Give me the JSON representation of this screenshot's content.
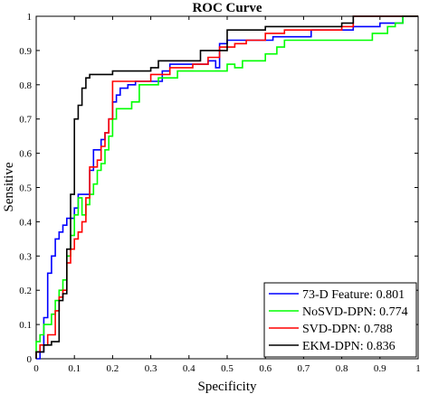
{
  "chart_data": {
    "type": "line",
    "title": "ROC Curve",
    "xlabel": "Specificity",
    "ylabel": "Sensitive",
    "xlim": [
      0,
      1
    ],
    "ylim": [
      0,
      1
    ],
    "xticks": [
      "0",
      "0.1",
      "0.2",
      "0.3",
      "0.4",
      "0.5",
      "0.6",
      "0.7",
      "0.8",
      "0.9",
      "1"
    ],
    "yticks": [
      "0",
      "0.1",
      "0.2",
      "0.3",
      "0.4",
      "0.5",
      "0.6",
      "0.7",
      "0.8",
      "0.9",
      "1"
    ],
    "grid": false,
    "legend_position": "bottom-right",
    "series": [
      {
        "name": "73-D Feature: 0.801",
        "color": "#0000ff",
        "points": [
          [
            0,
            0
          ],
          [
            0.01,
            0
          ],
          [
            0.01,
            0.02
          ],
          [
            0.02,
            0.02
          ],
          [
            0.02,
            0.12
          ],
          [
            0.03,
            0.12
          ],
          [
            0.03,
            0.25
          ],
          [
            0.04,
            0.25
          ],
          [
            0.04,
            0.3
          ],
          [
            0.05,
            0.3
          ],
          [
            0.05,
            0.35
          ],
          [
            0.06,
            0.35
          ],
          [
            0.06,
            0.37
          ],
          [
            0.07,
            0.37
          ],
          [
            0.07,
            0.39
          ],
          [
            0.08,
            0.39
          ],
          [
            0.08,
            0.41
          ],
          [
            0.1,
            0.41
          ],
          [
            0.1,
            0.44
          ],
          [
            0.11,
            0.44
          ],
          [
            0.11,
            0.48
          ],
          [
            0.14,
            0.48
          ],
          [
            0.14,
            0.55
          ],
          [
            0.15,
            0.55
          ],
          [
            0.15,
            0.61
          ],
          [
            0.17,
            0.61
          ],
          [
            0.17,
            0.64
          ],
          [
            0.18,
            0.64
          ],
          [
            0.18,
            0.66
          ],
          [
            0.19,
            0.66
          ],
          [
            0.19,
            0.7
          ],
          [
            0.2,
            0.7
          ],
          [
            0.2,
            0.75
          ],
          [
            0.21,
            0.75
          ],
          [
            0.21,
            0.77
          ],
          [
            0.22,
            0.77
          ],
          [
            0.22,
            0.79
          ],
          [
            0.24,
            0.79
          ],
          [
            0.24,
            0.8
          ],
          [
            0.26,
            0.8
          ],
          [
            0.26,
            0.81
          ],
          [
            0.33,
            0.81
          ],
          [
            0.33,
            0.84
          ],
          [
            0.35,
            0.84
          ],
          [
            0.35,
            0.86
          ],
          [
            0.45,
            0.86
          ],
          [
            0.45,
            0.87
          ],
          [
            0.47,
            0.87
          ],
          [
            0.47,
            0.85
          ],
          [
            0.48,
            0.85
          ],
          [
            0.48,
            0.92
          ],
          [
            0.5,
            0.92
          ],
          [
            0.5,
            0.93
          ],
          [
            0.62,
            0.93
          ],
          [
            0.62,
            0.94
          ],
          [
            0.72,
            0.94
          ],
          [
            0.72,
            0.96
          ],
          [
            0.83,
            0.96
          ],
          [
            0.83,
            0.97
          ],
          [
            0.9,
            0.97
          ],
          [
            0.9,
            0.98
          ],
          [
            0.96,
            0.98
          ],
          [
            0.96,
            1
          ],
          [
            1,
            1
          ]
        ]
      },
      {
        "name": "NoSVD-DPN: 0.774",
        "color": "#00ff00",
        "points": [
          [
            0,
            0
          ],
          [
            0,
            0.05
          ],
          [
            0.01,
            0.05
          ],
          [
            0.01,
            0.07
          ],
          [
            0.02,
            0.07
          ],
          [
            0.02,
            0.1
          ],
          [
            0.04,
            0.1
          ],
          [
            0.04,
            0.13
          ],
          [
            0.05,
            0.13
          ],
          [
            0.05,
            0.17
          ],
          [
            0.06,
            0.17
          ],
          [
            0.06,
            0.2
          ],
          [
            0.07,
            0.2
          ],
          [
            0.07,
            0.23
          ],
          [
            0.08,
            0.23
          ],
          [
            0.08,
            0.3
          ],
          [
            0.09,
            0.3
          ],
          [
            0.09,
            0.36
          ],
          [
            0.1,
            0.36
          ],
          [
            0.1,
            0.42
          ],
          [
            0.11,
            0.42
          ],
          [
            0.11,
            0.47
          ],
          [
            0.12,
            0.47
          ],
          [
            0.12,
            0.42
          ],
          [
            0.13,
            0.42
          ],
          [
            0.13,
            0.45
          ],
          [
            0.14,
            0.45
          ],
          [
            0.14,
            0.48
          ],
          [
            0.15,
            0.48
          ],
          [
            0.15,
            0.51
          ],
          [
            0.16,
            0.51
          ],
          [
            0.16,
            0.55
          ],
          [
            0.17,
            0.55
          ],
          [
            0.17,
            0.57
          ],
          [
            0.18,
            0.57
          ],
          [
            0.18,
            0.61
          ],
          [
            0.19,
            0.61
          ],
          [
            0.19,
            0.65
          ],
          [
            0.2,
            0.65
          ],
          [
            0.2,
            0.7
          ],
          [
            0.21,
            0.7
          ],
          [
            0.21,
            0.73
          ],
          [
            0.25,
            0.73
          ],
          [
            0.25,
            0.75
          ],
          [
            0.27,
            0.75
          ],
          [
            0.27,
            0.8
          ],
          [
            0.32,
            0.8
          ],
          [
            0.32,
            0.82
          ],
          [
            0.37,
            0.82
          ],
          [
            0.37,
            0.84
          ],
          [
            0.5,
            0.84
          ],
          [
            0.5,
            0.86
          ],
          [
            0.52,
            0.86
          ],
          [
            0.52,
            0.85
          ],
          [
            0.54,
            0.85
          ],
          [
            0.54,
            0.87
          ],
          [
            0.6,
            0.87
          ],
          [
            0.6,
            0.89
          ],
          [
            0.63,
            0.89
          ],
          [
            0.63,
            0.91
          ],
          [
            0.65,
            0.91
          ],
          [
            0.65,
            0.93
          ],
          [
            0.88,
            0.93
          ],
          [
            0.88,
            0.95
          ],
          [
            0.92,
            0.95
          ],
          [
            0.92,
            0.97
          ],
          [
            0.94,
            0.97
          ],
          [
            0.94,
            0.98
          ],
          [
            0.96,
            0.98
          ],
          [
            0.96,
            1
          ],
          [
            1,
            1
          ]
        ]
      },
      {
        "name": "SVD-DPN: 0.788",
        "color": "#ff0000",
        "points": [
          [
            0,
            0
          ],
          [
            0,
            0.02
          ],
          [
            0.01,
            0.02
          ],
          [
            0.01,
            0.04
          ],
          [
            0.03,
            0.04
          ],
          [
            0.03,
            0.07
          ],
          [
            0.05,
            0.07
          ],
          [
            0.05,
            0.14
          ],
          [
            0.06,
            0.14
          ],
          [
            0.06,
            0.18
          ],
          [
            0.07,
            0.18
          ],
          [
            0.07,
            0.2
          ],
          [
            0.08,
            0.2
          ],
          [
            0.08,
            0.28
          ],
          [
            0.09,
            0.28
          ],
          [
            0.09,
            0.32
          ],
          [
            0.1,
            0.32
          ],
          [
            0.1,
            0.35
          ],
          [
            0.11,
            0.35
          ],
          [
            0.11,
            0.37
          ],
          [
            0.12,
            0.37
          ],
          [
            0.12,
            0.4
          ],
          [
            0.13,
            0.4
          ],
          [
            0.13,
            0.47
          ],
          [
            0.14,
            0.47
          ],
          [
            0.14,
            0.56
          ],
          [
            0.16,
            0.56
          ],
          [
            0.16,
            0.58
          ],
          [
            0.17,
            0.58
          ],
          [
            0.17,
            0.62
          ],
          [
            0.18,
            0.62
          ],
          [
            0.18,
            0.66
          ],
          [
            0.19,
            0.66
          ],
          [
            0.19,
            0.7
          ],
          [
            0.2,
            0.7
          ],
          [
            0.2,
            0.81
          ],
          [
            0.3,
            0.81
          ],
          [
            0.3,
            0.83
          ],
          [
            0.35,
            0.83
          ],
          [
            0.35,
            0.85
          ],
          [
            0.41,
            0.85
          ],
          [
            0.41,
            0.86
          ],
          [
            0.45,
            0.86
          ],
          [
            0.45,
            0.88
          ],
          [
            0.48,
            0.88
          ],
          [
            0.48,
            0.91
          ],
          [
            0.52,
            0.91
          ],
          [
            0.52,
            0.92
          ],
          [
            0.55,
            0.92
          ],
          [
            0.55,
            0.93
          ],
          [
            0.6,
            0.93
          ],
          [
            0.6,
            0.95
          ],
          [
            0.65,
            0.95
          ],
          [
            0.65,
            0.96
          ],
          [
            0.8,
            0.96
          ],
          [
            0.8,
            0.97
          ],
          [
            0.83,
            0.97
          ],
          [
            0.83,
            1
          ],
          [
            1,
            1
          ]
        ]
      },
      {
        "name": "EKM-DPN: 0.836",
        "color": "#000000",
        "points": [
          [
            0,
            0
          ],
          [
            0,
            0.02
          ],
          [
            0.02,
            0.02
          ],
          [
            0.02,
            0.04
          ],
          [
            0.04,
            0.04
          ],
          [
            0.04,
            0.05
          ],
          [
            0.06,
            0.05
          ],
          [
            0.06,
            0.17
          ],
          [
            0.07,
            0.17
          ],
          [
            0.07,
            0.19
          ],
          [
            0.08,
            0.19
          ],
          [
            0.08,
            0.32
          ],
          [
            0.09,
            0.32
          ],
          [
            0.09,
            0.48
          ],
          [
            0.1,
            0.48
          ],
          [
            0.1,
            0.7
          ],
          [
            0.11,
            0.7
          ],
          [
            0.11,
            0.74
          ],
          [
            0.12,
            0.74
          ],
          [
            0.12,
            0.79
          ],
          [
            0.13,
            0.79
          ],
          [
            0.13,
            0.82
          ],
          [
            0.14,
            0.82
          ],
          [
            0.14,
            0.83
          ],
          [
            0.2,
            0.83
          ],
          [
            0.2,
            0.84
          ],
          [
            0.3,
            0.84
          ],
          [
            0.3,
            0.85
          ],
          [
            0.32,
            0.85
          ],
          [
            0.32,
            0.87
          ],
          [
            0.43,
            0.87
          ],
          [
            0.43,
            0.9
          ],
          [
            0.5,
            0.9
          ],
          [
            0.5,
            0.95
          ],
          [
            0.5,
            0.96
          ],
          [
            0.6,
            0.96
          ],
          [
            0.6,
            0.97
          ],
          [
            0.8,
            0.97
          ],
          [
            0.8,
            0.98
          ],
          [
            0.83,
            0.98
          ],
          [
            0.83,
            1
          ],
          [
            1,
            1
          ]
        ]
      }
    ]
  }
}
